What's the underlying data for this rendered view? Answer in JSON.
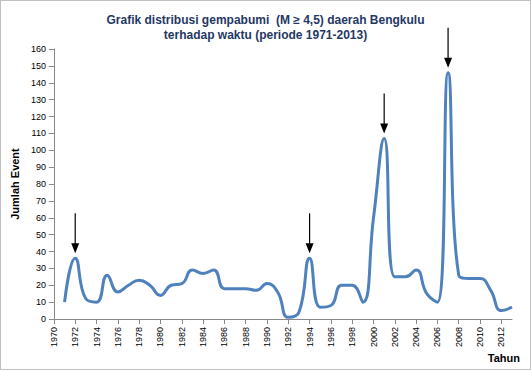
{
  "chart_data": {
    "type": "line",
    "title": "Grafik distribusi gempabumi  (M ≥ 4,5) daerah Bengkulu\nterhadap waktu (periode 1971-2013)",
    "x_label": "Tahun",
    "y_label": "Jumlah Event",
    "x": [
      1971,
      1972,
      1973,
      1974,
      1975,
      1976,
      1977,
      1978,
      1979,
      1980,
      1981,
      1982,
      1983,
      1984,
      1985,
      1986,
      1987,
      1988,
      1989,
      1990,
      1991,
      1992,
      1993,
      1994,
      1995,
      1996,
      1997,
      1998,
      1999,
      2000,
      2001,
      2002,
      2003,
      2004,
      2005,
      2006,
      2007,
      2008,
      2009,
      2010,
      2011,
      2012,
      2013
    ],
    "values": [
      10,
      36,
      12,
      10,
      26,
      16,
      20,
      23,
      20,
      14,
      20,
      21,
      29,
      27,
      29,
      18,
      18,
      18,
      17,
      21,
      16,
      1,
      4,
      36,
      7,
      8,
      20,
      20,
      10,
      60,
      107,
      25,
      25,
      29,
      15,
      10,
      146,
      26,
      24,
      24,
      17,
      5,
      7
    ],
    "color": "#4f81bd",
    "arrows_x": [
      1972,
      1994,
      2001,
      2007
    ],
    "xlim": [
      1970,
      2013
    ],
    "xticks": [
      1970,
      1972,
      1974,
      1976,
      1978,
      1980,
      1982,
      1984,
      1986,
      1988,
      1990,
      1992,
      1994,
      1996,
      1998,
      2000,
      2002,
      2004,
      2006,
      2008,
      2010,
      2012
    ],
    "ylim": [
      0,
      160
    ],
    "yticks": [
      0,
      10,
      20,
      30,
      40,
      50,
      60,
      70,
      80,
      90,
      100,
      110,
      120,
      130,
      140,
      150,
      160
    ],
    "grid": false
  }
}
